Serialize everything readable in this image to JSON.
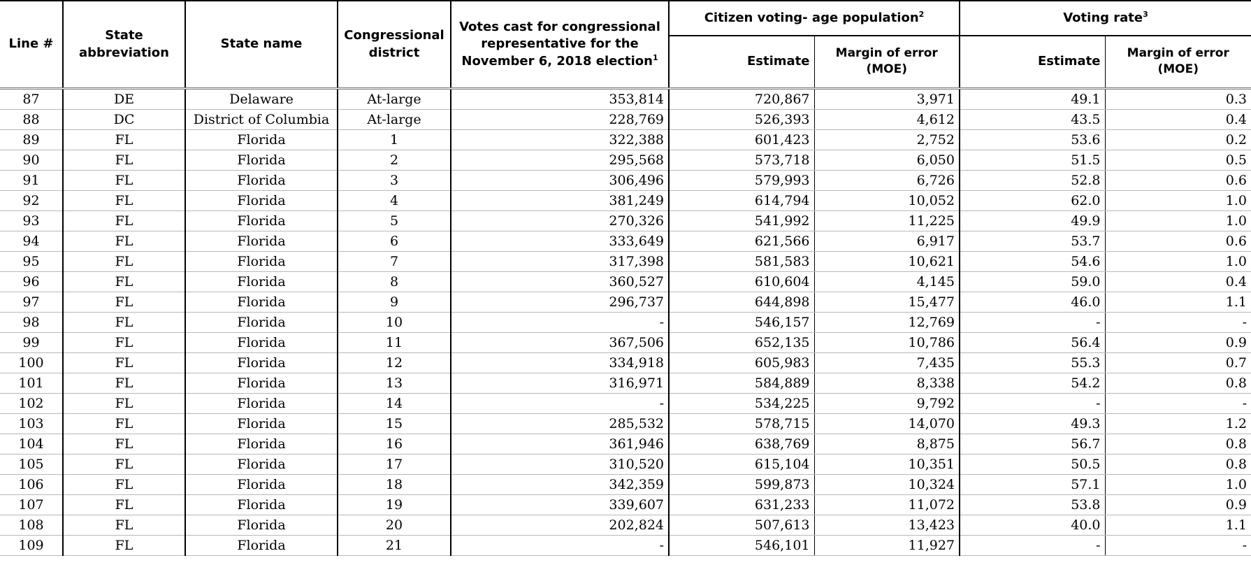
{
  "headers": {
    "line": "Line #",
    "state_abbr": "State abbreviation",
    "state_name": "State name",
    "district": "Congressional district",
    "votes": "Votes cast for congressional representative for the November 6, 2018 election",
    "votes_note": "1",
    "cvap": "Citizen voting- age population",
    "cvap_note": "2",
    "rate": "Voting rate",
    "rate_note": "3",
    "estimate": "Estimate",
    "moe": "Margin of error (MOE)"
  },
  "rows": [
    {
      "line": "87",
      "abbr": "DE",
      "name": "Delaware",
      "district": "At-large",
      "votes": "353,814",
      "cvap_est": "720,867",
      "cvap_moe": "3,971",
      "rate_est": "49.1",
      "rate_moe": "0.3"
    },
    {
      "line": "88",
      "abbr": "DC",
      "name": "District of Columbia",
      "district": "At-large",
      "votes": "228,769",
      "cvap_est": "526,393",
      "cvap_moe": "4,612",
      "rate_est": "43.5",
      "rate_moe": "0.4"
    },
    {
      "line": "89",
      "abbr": "FL",
      "name": "Florida",
      "district": "1",
      "votes": "322,388",
      "cvap_est": "601,423",
      "cvap_moe": "2,752",
      "rate_est": "53.6",
      "rate_moe": "0.2"
    },
    {
      "line": "90",
      "abbr": "FL",
      "name": "Florida",
      "district": "2",
      "votes": "295,568",
      "cvap_est": "573,718",
      "cvap_moe": "6,050",
      "rate_est": "51.5",
      "rate_moe": "0.5"
    },
    {
      "line": "91",
      "abbr": "FL",
      "name": "Florida",
      "district": "3",
      "votes": "306,496",
      "cvap_est": "579,993",
      "cvap_moe": "6,726",
      "rate_est": "52.8",
      "rate_moe": "0.6"
    },
    {
      "line": "92",
      "abbr": "FL",
      "name": "Florida",
      "district": "4",
      "votes": "381,249",
      "cvap_est": "614,794",
      "cvap_moe": "10,052",
      "rate_est": "62.0",
      "rate_moe": "1.0"
    },
    {
      "line": "93",
      "abbr": "FL",
      "name": "Florida",
      "district": "5",
      "votes": "270,326",
      "cvap_est": "541,992",
      "cvap_moe": "11,225",
      "rate_est": "49.9",
      "rate_moe": "1.0"
    },
    {
      "line": "94",
      "abbr": "FL",
      "name": "Florida",
      "district": "6",
      "votes": "333,649",
      "cvap_est": "621,566",
      "cvap_moe": "6,917",
      "rate_est": "53.7",
      "rate_moe": "0.6"
    },
    {
      "line": "95",
      "abbr": "FL",
      "name": "Florida",
      "district": "7",
      "votes": "317,398",
      "cvap_est": "581,583",
      "cvap_moe": "10,621",
      "rate_est": "54.6",
      "rate_moe": "1.0"
    },
    {
      "line": "96",
      "abbr": "FL",
      "name": "Florida",
      "district": "8",
      "votes": "360,527",
      "cvap_est": "610,604",
      "cvap_moe": "4,145",
      "rate_est": "59.0",
      "rate_moe": "0.4"
    },
    {
      "line": "97",
      "abbr": "FL",
      "name": "Florida",
      "district": "9",
      "votes": "296,737",
      "cvap_est": "644,898",
      "cvap_moe": "15,477",
      "rate_est": "46.0",
      "rate_moe": "1.1"
    },
    {
      "line": "98",
      "abbr": "FL",
      "name": "Florida",
      "district": "10",
      "votes": "-",
      "cvap_est": "546,157",
      "cvap_moe": "12,769",
      "rate_est": "-",
      "rate_moe": "-"
    },
    {
      "line": "99",
      "abbr": "FL",
      "name": "Florida",
      "district": "11",
      "votes": "367,506",
      "cvap_est": "652,135",
      "cvap_moe": "10,786",
      "rate_est": "56.4",
      "rate_moe": "0.9"
    },
    {
      "line": "100",
      "abbr": "FL",
      "name": "Florida",
      "district": "12",
      "votes": "334,918",
      "cvap_est": "605,983",
      "cvap_moe": "7,435",
      "rate_est": "55.3",
      "rate_moe": "0.7"
    },
    {
      "line": "101",
      "abbr": "FL",
      "name": "Florida",
      "district": "13",
      "votes": "316,971",
      "cvap_est": "584,889",
      "cvap_moe": "8,338",
      "rate_est": "54.2",
      "rate_moe": "0.8"
    },
    {
      "line": "102",
      "abbr": "FL",
      "name": "Florida",
      "district": "14",
      "votes": "-",
      "cvap_est": "534,225",
      "cvap_moe": "9,792",
      "rate_est": "-",
      "rate_moe": "-"
    },
    {
      "line": "103",
      "abbr": "FL",
      "name": "Florida",
      "district": "15",
      "votes": "285,532",
      "cvap_est": "578,715",
      "cvap_moe": "14,070",
      "rate_est": "49.3",
      "rate_moe": "1.2"
    },
    {
      "line": "104",
      "abbr": "FL",
      "name": "Florida",
      "district": "16",
      "votes": "361,946",
      "cvap_est": "638,769",
      "cvap_moe": "8,875",
      "rate_est": "56.7",
      "rate_moe": "0.8"
    },
    {
      "line": "105",
      "abbr": "FL",
      "name": "Florida",
      "district": "17",
      "votes": "310,520",
      "cvap_est": "615,104",
      "cvap_moe": "10,351",
      "rate_est": "50.5",
      "rate_moe": "0.8"
    },
    {
      "line": "106",
      "abbr": "FL",
      "name": "Florida",
      "district": "18",
      "votes": "342,359",
      "cvap_est": "599,873",
      "cvap_moe": "10,324",
      "rate_est": "57.1",
      "rate_moe": "1.0"
    },
    {
      "line": "107",
      "abbr": "FL",
      "name": "Florida",
      "district": "19",
      "votes": "339,607",
      "cvap_est": "631,233",
      "cvap_moe": "11,072",
      "rate_est": "53.8",
      "rate_moe": "0.9"
    },
    {
      "line": "108",
      "abbr": "FL",
      "name": "Florida",
      "district": "20",
      "votes": "202,824",
      "cvap_est": "507,613",
      "cvap_moe": "13,423",
      "rate_est": "40.0",
      "rate_moe": "1.1"
    },
    {
      "line": "109",
      "abbr": "FL",
      "name": "Florida",
      "district": "21",
      "votes": "-",
      "cvap_est": "546,101",
      "cvap_moe": "11,927",
      "rate_est": "-",
      "rate_moe": "-"
    }
  ]
}
